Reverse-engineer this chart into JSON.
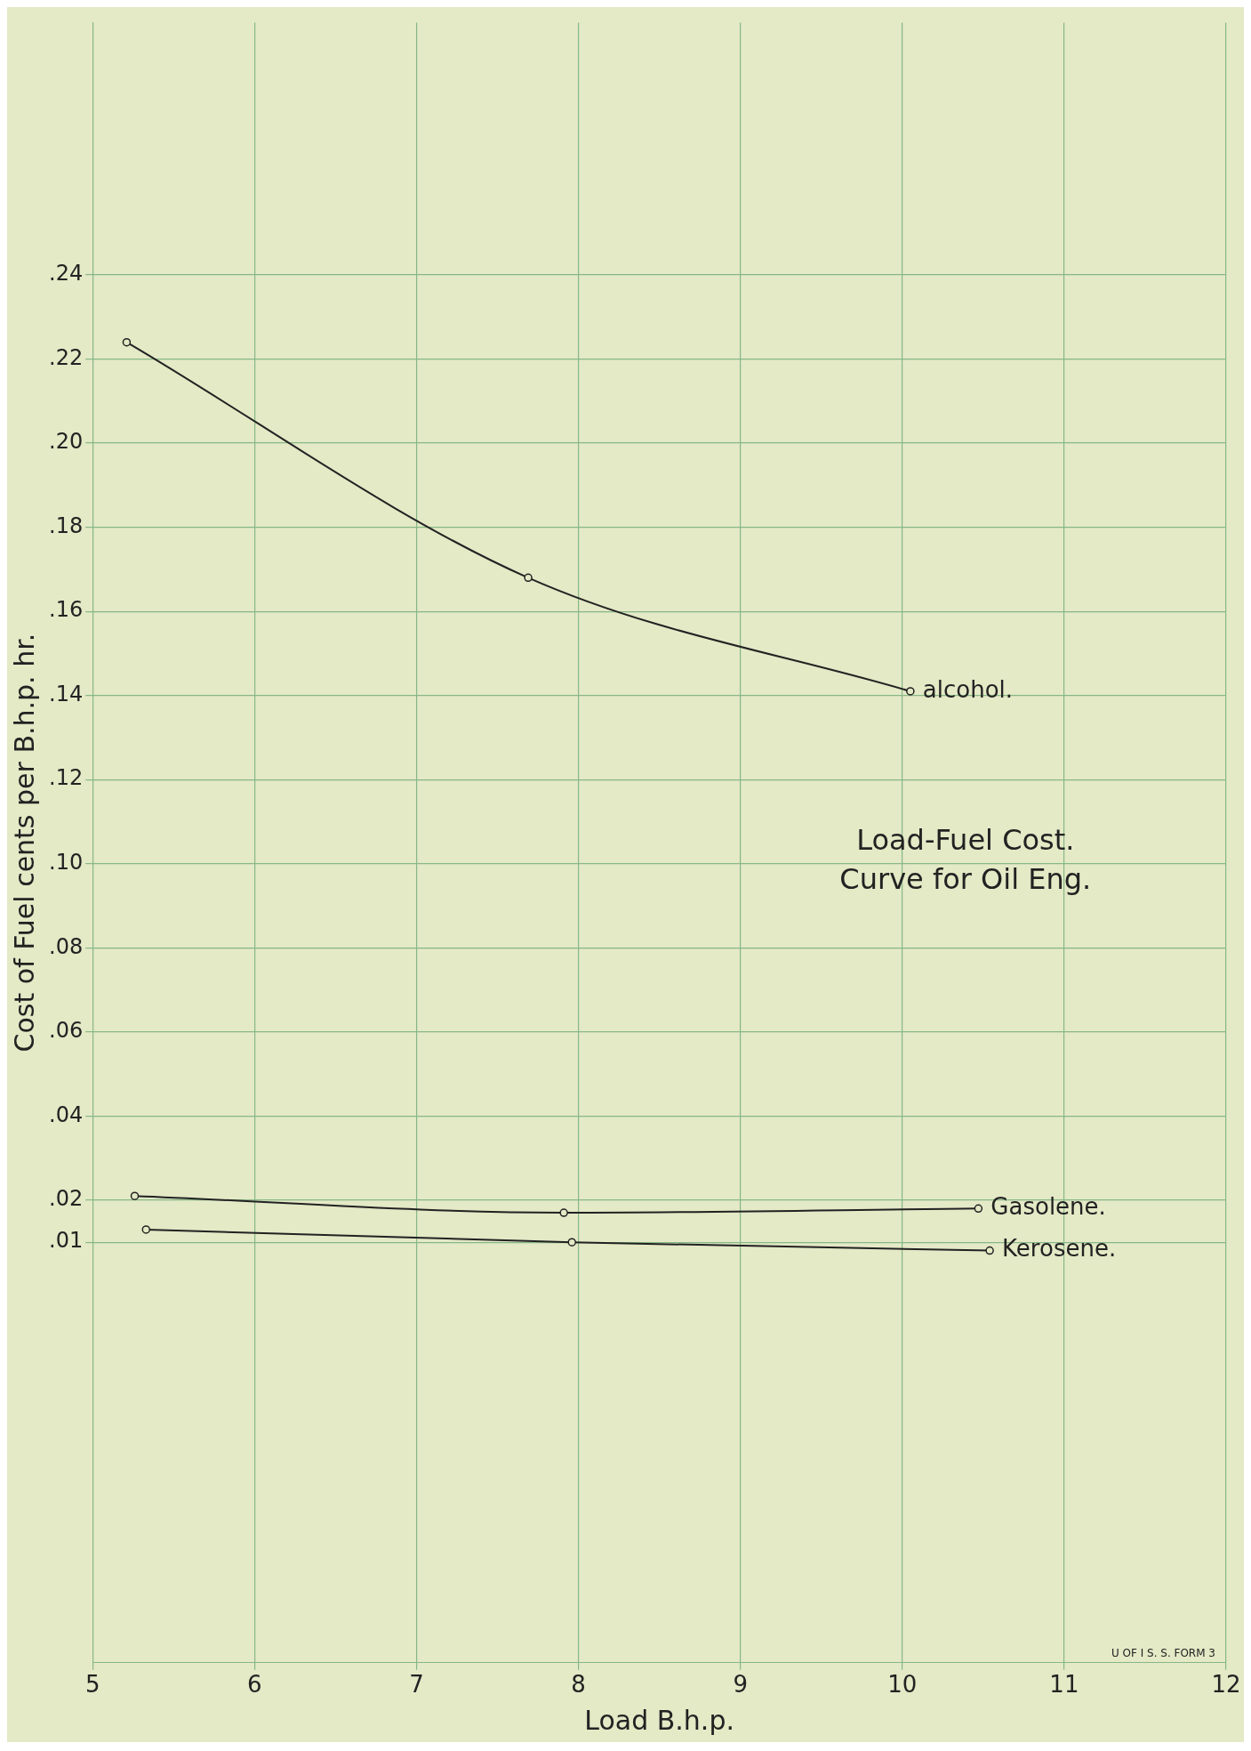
{
  "chart_data": {
    "type": "line",
    "title": "Load-Fuel Cost. Curve for Oil Eng.",
    "xlabel": "Load B.h.p.",
    "ylabel": "Cost of Fuel cents per B.h.p. hr.",
    "xlim": [
      5,
      12
    ],
    "xticks": [
      5,
      6,
      7,
      8,
      9,
      10,
      11,
      12
    ],
    "ylim": [
      -0.09,
      0.3
    ],
    "yticks": [
      {
        "value": 0.01,
        "label": ".01"
      },
      {
        "value": 0.02,
        "label": ".02"
      },
      {
        "value": 0.04,
        "label": ".04"
      },
      {
        "value": 0.06,
        "label": ".06"
      },
      {
        "value": 0.08,
        "label": ".08"
      },
      {
        "value": 0.1,
        "label": ".10"
      },
      {
        "value": 0.12,
        "label": ".12"
      },
      {
        "value": 0.14,
        "label": ".14"
      },
      {
        "value": 0.16,
        "label": ".16"
      },
      {
        "value": 0.18,
        "label": ".18"
      },
      {
        "value": 0.2,
        "label": ".20"
      },
      {
        "value": 0.22,
        "label": ".22"
      },
      {
        "value": 0.24,
        "label": ".24"
      }
    ],
    "grid": true,
    "legend": false,
    "marker": "circle",
    "line_style": "solid",
    "annotations": [
      "U OF I S. S. FORM 3"
    ],
    "series": [
      {
        "name": "alcohol.",
        "color": "#222222",
        "x": [
          5.21,
          7.69,
          10.05
        ],
        "values": [
          0.224,
          0.168,
          0.141
        ]
      },
      {
        "name": "Gasolene.",
        "color": "#222222",
        "x": [
          5.26,
          7.91,
          10.47
        ],
        "values": [
          0.021,
          0.017,
          0.018
        ]
      },
      {
        "name": "Kerosene.",
        "color": "#222222",
        "x": [
          5.33,
          7.96,
          10.54
        ],
        "values": [
          0.013,
          0.01,
          0.008
        ]
      }
    ]
  }
}
